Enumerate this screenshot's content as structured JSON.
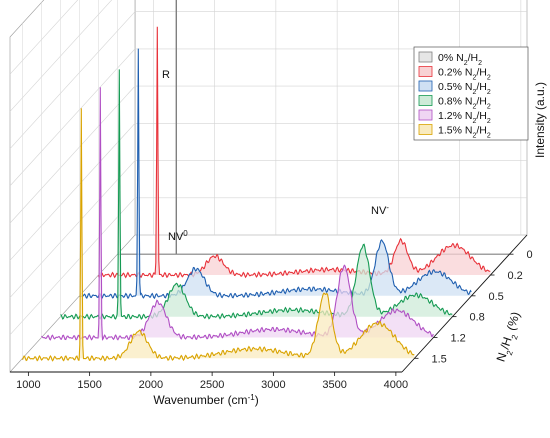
{
  "chart_data": {
    "type": "line",
    "style": "3d-waterfall",
    "x_axis": {
      "label": "Wavenumber (cm",
      "label_sup": "-1",
      "label_end": ")",
      "ticks": [
        1000,
        1500,
        2000,
        2500,
        3000,
        3500,
        4000
      ],
      "range": [
        850,
        4050
      ]
    },
    "y_axis": {
      "label": "N",
      "label_sub1": "2",
      "label_mid": "/H",
      "label_sub2": "2",
      "label_end": " (%)",
      "ticks": [
        "0",
        "0.2",
        "0.5",
        "0.8",
        "1.2",
        "1.5"
      ]
    },
    "z_axis": {
      "label": "Intensity (a.u.)",
      "grid_levels": 8
    },
    "annotations": {
      "R": "R",
      "NV0": "NV",
      "NV0_sup": "0",
      "NVminus": "NV",
      "NVminus_sup": "-"
    },
    "legend": {
      "position": "top-right",
      "entries": [
        {
          "pct": "0%",
          "formula_a": "N",
          "sub_a": "2",
          "formula_b": "/H",
          "sub_b": "2",
          "color": "#808080",
          "fill": "#e6e6e6"
        },
        {
          "pct": "0.2%",
          "formula_a": "N",
          "sub_a": "2",
          "formula_b": "/H",
          "sub_b": "2",
          "color": "#e8323a",
          "fill": "#f8d2d4"
        },
        {
          "pct": "0.5%",
          "formula_a": "N",
          "sub_a": "2",
          "formula_b": "/H",
          "sub_b": "2",
          "color": "#1f5fb0",
          "fill": "#cfe0f3"
        },
        {
          "pct": "0.8%",
          "formula_a": "N",
          "sub_a": "2",
          "formula_b": "/H",
          "sub_b": "2",
          "color": "#159a53",
          "fill": "#cdebd8"
        },
        {
          "pct": "1.2%",
          "formula_a": "N",
          "sub_a": "2",
          "formula_b": "/H",
          "sub_b": "2",
          "color": "#b04fc4",
          "fill": "#efd6f3"
        },
        {
          "pct": "1.5%",
          "formula_a": "N",
          "sub_a": "2",
          "formula_b": "/H",
          "sub_b": "2",
          "color": "#d9a300",
          "fill": "#f9ebbf"
        }
      ]
    },
    "series": [
      {
        "name": "0%",
        "color": "#808080",
        "fill": "#e6e6e6",
        "peaks": []
      },
      {
        "name": "0.2%",
        "color": "#e8323a",
        "fill": "#f8d2d4",
        "peaks": [
          [
            1330,
            9.2,
            5
          ],
          [
            1800,
            0.7,
            70
          ],
          [
            2740,
            0.2,
            250
          ],
          [
            3320,
            1.25,
            55
          ],
          [
            3750,
            1.1,
            140
          ]
        ]
      },
      {
        "name": "0.5%",
        "color": "#1f5fb0",
        "fill": "#cfe0f3",
        "peaks": [
          [
            1330,
            9.2,
            5
          ],
          [
            1800,
            1.0,
            70
          ],
          [
            2740,
            0.25,
            250
          ],
          [
            3320,
            2.0,
            55
          ],
          [
            3750,
            0.9,
            140
          ]
        ]
      },
      {
        "name": "0.8%",
        "color": "#159a53",
        "fill": "#cdebd8",
        "peaks": [
          [
            1330,
            9.2,
            5
          ],
          [
            1800,
            1.2,
            70
          ],
          [
            2740,
            0.25,
            250
          ],
          [
            3320,
            2.6,
            55
          ],
          [
            3750,
            0.8,
            140
          ]
        ]
      },
      {
        "name": "1.2%",
        "color": "#b04fc4",
        "fill": "#efd6f3",
        "peaks": [
          [
            1330,
            9.2,
            5
          ],
          [
            1800,
            1.3,
            70
          ],
          [
            2740,
            0.3,
            250
          ],
          [
            3320,
            2.6,
            55
          ],
          [
            3750,
            1.0,
            140
          ]
        ]
      },
      {
        "name": "1.5%",
        "color": "#d9a300",
        "fill": "#f9ebbf",
        "peaks": [
          [
            1330,
            9.2,
            5
          ],
          [
            1800,
            1.0,
            70
          ],
          [
            2740,
            0.35,
            250
          ],
          [
            3320,
            2.4,
            55
          ],
          [
            3750,
            1.3,
            140
          ]
        ]
      }
    ]
  }
}
